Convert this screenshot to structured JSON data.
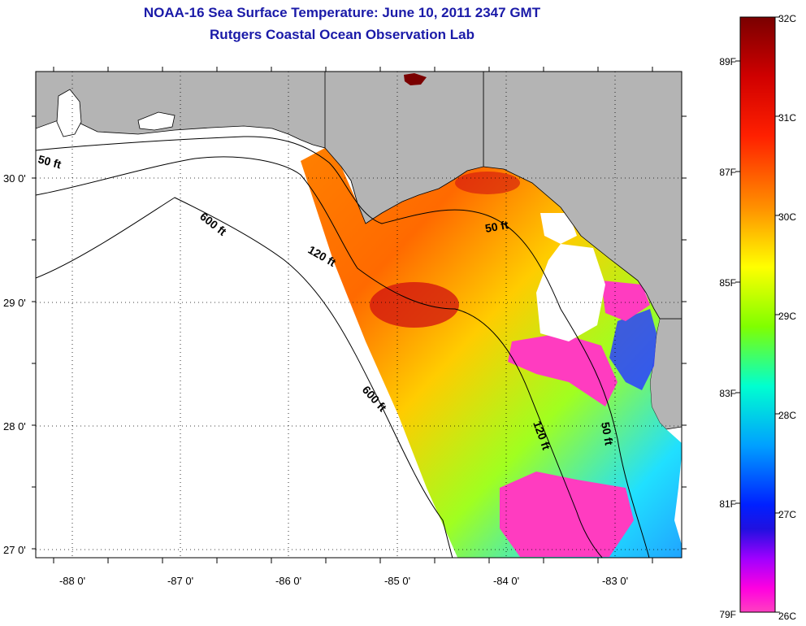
{
  "title": {
    "line1": "NOAA-16 Sea Surface Temperature:  June 10, 2011 2347 GMT",
    "line2": "Rutgers Coastal Ocean Observation Lab"
  },
  "map": {
    "lon_labels": [
      "-88 0'",
      "-87 0'",
      "-86 0'",
      "-85 0'",
      "-84 0'",
      "-83 0'"
    ],
    "lat_labels": [
      "30 0'",
      "29 0'",
      "28 0'",
      "27 0'"
    ],
    "contour_labels": [
      "50 ft",
      "600 ft",
      "120 ft",
      "600 ft",
      "50 ft",
      "120 ft",
      "50 ft"
    ],
    "colors": {
      "land": "#b4b4b4",
      "water": "#ffffff",
      "grid": "#000000"
    }
  },
  "colorbar": {
    "celsius": [
      "32C",
      "31C",
      "30C",
      "29C",
      "28C",
      "27C",
      "26C"
    ],
    "fahrenheit": [
      "89F",
      "87F",
      "85F",
      "83F",
      "81F",
      "79F"
    ],
    "stops": [
      "#7a0000",
      "#ff0000",
      "#ff8000",
      "#ffff00",
      "#80ff00",
      "#00ffff",
      "#0080ff",
      "#0000ff",
      "#8000ff",
      "#ff00ff",
      "#ff40c0"
    ]
  }
}
